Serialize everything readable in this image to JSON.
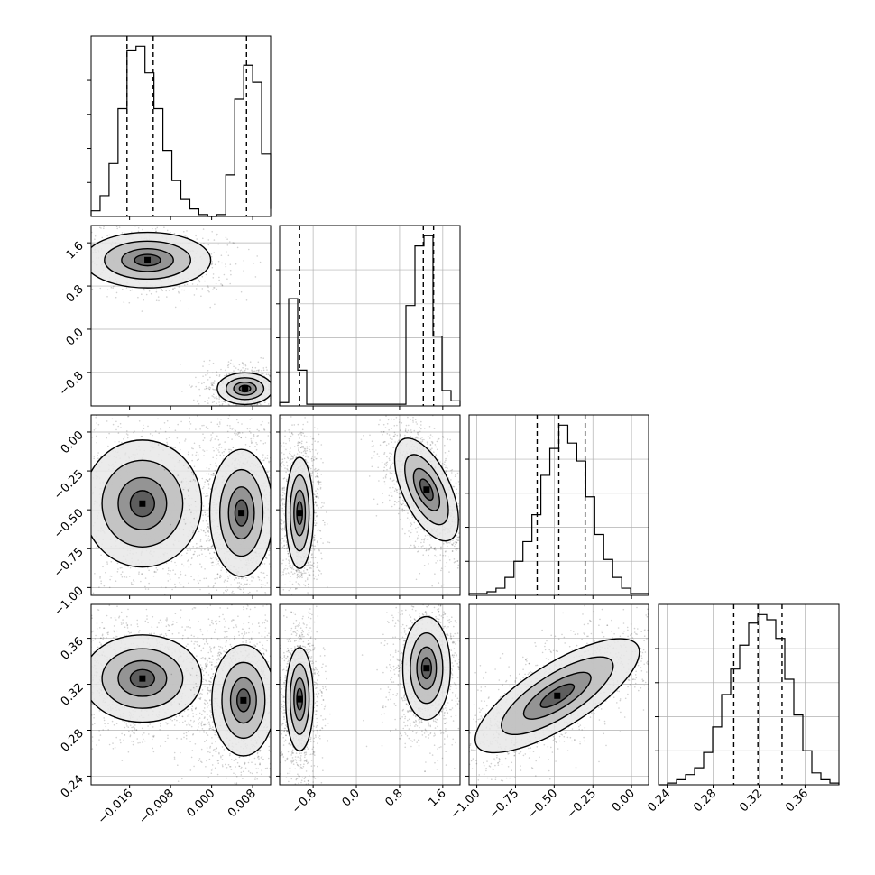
{
  "chart_data": [
    {
      "type": "histogram",
      "panel": "row1-col1",
      "param": 1,
      "xlim": [
        -0.0235,
        0.0115
      ],
      "bins_x": [
        -0.0235,
        -0.02175,
        -0.02,
        -0.01825,
        -0.0165,
        -0.01475,
        -0.013,
        -0.01125,
        -0.0095,
        -0.00775,
        -0.006,
        -0.00425,
        -0.0025,
        -0.00075,
        0.001,
        0.00275,
        0.0045,
        0.00625,
        0.008,
        0.00975,
        0.0115
      ],
      "counts": [
        3,
        11,
        28,
        57,
        88,
        90,
        76,
        57,
        35,
        19,
        9,
        4,
        1,
        0,
        1,
        22,
        62,
        80,
        71,
        33,
        4
      ],
      "quantiles": [
        -0.0165,
        -0.0114,
        0.0068
      ]
    },
    {
      "type": "histogram",
      "panel": "row2-col2",
      "param": 2,
      "xlim": [
        -1.42,
        1.92
      ],
      "bins_x": [
        -1.42,
        -1.253,
        -1.086,
        -0.919,
        -0.752,
        -0.585,
        -0.418,
        -0.251,
        -0.084,
        0.083,
        0.25,
        0.417,
        0.584,
        0.751,
        0.918,
        1.085,
        1.252,
        1.419,
        1.586,
        1.753,
        1.92
      ],
      "counts": [
        2,
        63,
        21,
        1,
        1,
        1,
        1,
        1,
        1,
        1,
        1,
        1,
        1,
        1,
        59,
        94,
        100,
        41,
        9,
        3
      ],
      "quantiles": [
        -1.05,
        1.24,
        1.43
      ]
    },
    {
      "type": "histogram",
      "panel": "row3-col3",
      "param": 3,
      "xlim": [
        -1.05,
        0.11
      ],
      "bins_x": [
        -1.05,
        -0.992,
        -0.934,
        -0.876,
        -0.818,
        -0.76,
        -0.702,
        -0.644,
        -0.586,
        -0.528,
        -0.47,
        -0.412,
        -0.354,
        -0.296,
        -0.238,
        -0.18,
        -0.122,
        -0.064,
        -0.006,
        0.052,
        0.11
      ],
      "counts": [
        1,
        1,
        2,
        4,
        10,
        19,
        30,
        45,
        67,
        82,
        95,
        85,
        75,
        55,
        34,
        20,
        10,
        4,
        1,
        1
      ],
      "quantiles": [
        -0.61,
        -0.47,
        -0.3
      ]
    },
    {
      "type": "histogram",
      "panel": "row4-col4",
      "param": 4,
      "xlim": [
        0.2325,
        0.3895
      ],
      "bins_x": [
        0.2325,
        0.24035,
        0.2482,
        0.25605,
        0.2639,
        0.27175,
        0.2796,
        0.28745,
        0.2953,
        0.30315,
        0.311,
        0.31885,
        0.3267,
        0.33455,
        0.3424,
        0.35025,
        0.3581,
        0.36595,
        0.3738,
        0.38165,
        0.3895
      ],
      "counts": [
        0,
        1,
        3,
        6,
        10,
        19,
        34,
        53,
        68,
        82,
        95,
        100,
        97,
        86,
        62,
        41,
        20,
        7,
        3,
        1
      ],
      "quantiles": [
        0.298,
        0.319,
        0.34
      ]
    },
    {
      "type": "contour",
      "panel": "row2-col1",
      "x_param": 1,
      "y_param": 2,
      "xlim": [
        -0.0235,
        0.0115
      ],
      "ylim": [
        -1.42,
        1.92
      ],
      "modes": [
        [
          -0.0125,
          1.28
        ],
        [
          0.0065,
          -1.1
        ]
      ]
    },
    {
      "type": "contour",
      "panel": "row3-col1",
      "x_param": 1,
      "y_param": 3,
      "xlim": [
        -0.0235,
        0.0115
      ],
      "ylim": [
        -1.05,
        0.11
      ],
      "modes": [
        [
          -0.0135,
          -0.46
        ],
        [
          0.0058,
          -0.52
        ]
      ]
    },
    {
      "type": "contour",
      "panel": "row3-col2",
      "x_param": 2,
      "y_param": 3,
      "xlim": [
        -1.42,
        1.92
      ],
      "ylim": [
        -1.05,
        0.11
      ],
      "modes": [
        [
          -1.05,
          -0.52
        ],
        [
          1.3,
          -0.37
        ]
      ]
    },
    {
      "type": "contour",
      "panel": "row4-col1",
      "x_param": 1,
      "y_param": 4,
      "xlim": [
        -0.0235,
        0.0115
      ],
      "ylim": [
        0.2325,
        0.3895
      ],
      "modes": [
        [
          -0.0135,
          0.325
        ],
        [
          0.0062,
          0.306
        ]
      ]
    },
    {
      "type": "contour",
      "panel": "row4-col2",
      "x_param": 2,
      "y_param": 4,
      "xlim": [
        -1.42,
        1.92
      ],
      "ylim": [
        0.2325,
        0.3895
      ],
      "modes": [
        [
          -1.05,
          0.307
        ],
        [
          1.3,
          0.334
        ]
      ]
    },
    {
      "type": "contour",
      "panel": "row4-col3",
      "x_param": 3,
      "y_param": 4,
      "xlim": [
        -1.05,
        0.11
      ],
      "ylim": [
        0.2325,
        0.3895
      ],
      "modes": [
        [
          -0.48,
          0.31
        ]
      ]
    }
  ],
  "axes": {
    "x_ticks": [
      {
        "values": [
          -0.016,
          -0.008,
          0.0,
          0.008
        ],
        "labels": [
          "−0.016",
          "−0.008",
          "0.000",
          "0.008"
        ]
      },
      {
        "values": [
          -0.8,
          0.0,
          0.8,
          1.6
        ],
        "labels": [
          "−0.8",
          "0.0",
          "0.8",
          "1.6"
        ]
      },
      {
        "values": [
          -1.0,
          -0.75,
          -0.5,
          -0.25,
          0.0
        ],
        "labels": [
          "−1.00",
          "−0.75",
          "−0.50",
          "−0.25",
          "0.00"
        ]
      },
      {
        "values": [
          0.24,
          0.28,
          0.32,
          0.36
        ],
        "labels": [
          "0.24",
          "0.28",
          "0.32",
          "0.36"
        ]
      }
    ],
    "y_ticks": {
      "row2": {
        "values": [
          1.6,
          0.8,
          0.0,
          -0.8
        ],
        "labels": [
          "1.6",
          "0.8",
          "0.0",
          "−0.8"
        ]
      },
      "row3": {
        "values": [
          0.0,
          -0.25,
          -0.5,
          -0.75,
          -1.0
        ],
        "labels": [
          "0.00",
          "−0.25",
          "−0.50",
          "−0.75",
          "−1.00"
        ]
      },
      "row4": {
        "values": [
          0.36,
          0.32,
          0.28,
          0.24
        ],
        "labels": [
          "0.36",
          "0.32",
          "0.28",
          "0.24"
        ]
      }
    }
  },
  "colors": {
    "ink": "#000000",
    "grid": "#b0b0b0",
    "background": "#ffffff"
  }
}
